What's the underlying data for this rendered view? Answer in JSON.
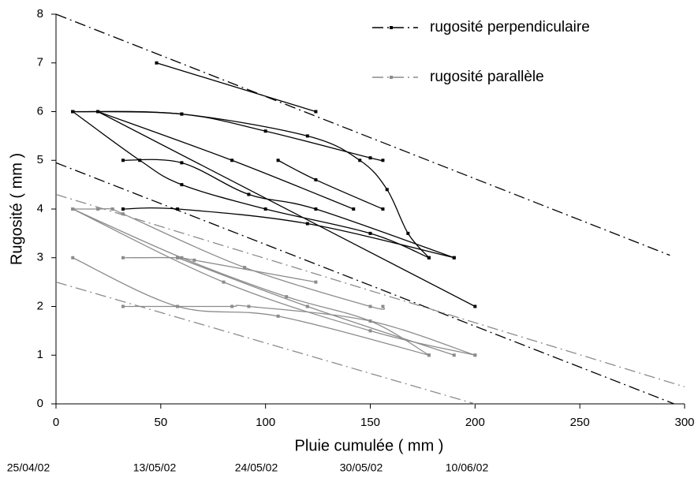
{
  "chart_data": {
    "type": "line",
    "xlabel": "Pluie cumulée  ( mm )",
    "ylabel": "Rugosité  ( mm )",
    "xlim": [
      0,
      300
    ],
    "xticks": [
      0,
      50,
      100,
      150,
      200,
      250,
      300
    ],
    "ylim": [
      0,
      8
    ],
    "yticks": [
      0,
      1,
      2,
      3,
      4,
      5,
      6,
      7,
      8
    ],
    "date_labels": [
      "25/04/02",
      "13/05/02",
      "24/05/02",
      "30/05/02",
      "10/06/02"
    ],
    "series": [
      {
        "name": "rugosité perpendiculaire",
        "color": "#000000",
        "envelopes": [
          {
            "x": [
              0,
              293
            ],
            "values": [
              8,
              3.05
            ]
          },
          {
            "x": [
              0,
              295
            ],
            "values": [
              4.95,
              0
            ]
          }
        ],
        "curves": [
          {
            "x": [
              48,
              124
            ],
            "values": [
              7,
              6
            ]
          },
          {
            "x": [
              8,
              60,
              100,
              150,
              156
            ],
            "values": [
              6,
              5.95,
              5.6,
              5.05,
              5
            ]
          },
          {
            "x": [
              8,
              60,
              120,
              145,
              158,
              168,
              178
            ],
            "values": [
              6,
              5.95,
              5.5,
              5,
              4.4,
              3.5,
              3
            ]
          },
          {
            "x": [
              20,
              84,
              142
            ],
            "values": [
              6,
              5,
              4
            ]
          },
          {
            "x": [
              8,
              40,
              60,
              100,
              150,
              178
            ],
            "values": [
              6,
              5,
              4.5,
              4,
              3.5,
              3
            ]
          },
          {
            "x": [
              32,
              60,
              92,
              124,
              190
            ],
            "values": [
              5,
              4.95,
              4.3,
              4,
              3
            ]
          },
          {
            "x": [
              106,
              124,
              156
            ],
            "values": [
              5,
              4.6,
              4
            ]
          },
          {
            "x": [
              32,
              58,
              120,
              190
            ],
            "values": [
              4,
              4,
              3.7,
              3
            ]
          },
          {
            "x": [
              20,
              200
            ],
            "values": [
              6,
              2
            ]
          }
        ]
      },
      {
        "name": "rugosité parallèle",
        "color": "#8c8c8c",
        "envelopes": [
          {
            "x": [
              0,
              300
            ],
            "values": [
              4.3,
              0.35
            ]
          },
          {
            "x": [
              0,
              200
            ],
            "values": [
              2.5,
              0
            ]
          }
        ],
        "curves": [
          {
            "x": [
              8,
              20,
              27,
              32,
              90,
              150,
              156
            ],
            "values": [
              4,
              4,
              4,
              3.9,
              2.8,
              2,
              2
            ]
          },
          {
            "x": [
              8,
              60,
              110,
              150,
              178
            ],
            "values": [
              4,
              3,
              2.2,
              1.7,
              1
            ]
          },
          {
            "x": [
              32,
              58,
              66,
              124
            ],
            "values": [
              3,
              3,
              2.95,
              2.5
            ]
          },
          {
            "x": [
              8,
              58,
              106,
              178
            ],
            "values": [
              3,
              2,
              1.8,
              1
            ]
          },
          {
            "x": [
              32,
              58,
              84,
              92,
              150,
              200
            ],
            "values": [
              2,
              2,
              2,
              2,
              1.7,
              1
            ]
          },
          {
            "x": [
              8,
              80,
              150,
              200
            ],
            "values": [
              4,
              2.5,
              1.5,
              1
            ]
          },
          {
            "x": [
              58,
              120,
              190
            ],
            "values": [
              3,
              2,
              1
            ]
          }
        ]
      }
    ]
  }
}
